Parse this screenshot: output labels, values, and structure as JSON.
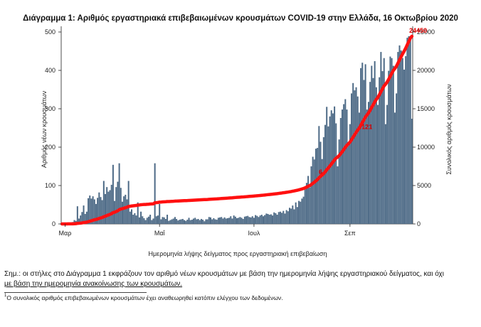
{
  "chart_data": {
    "type": "bar",
    "title": "Διάγραμμα 1: Αριθμός εργαστηριακά επιβεβαιωμένων κρουσμάτων COVID-19 στην Ελλάδα, 16 Οκτωβρίου 2020",
    "xlabel": "Ημερομηνία λήψης δείγματος προς εργαστηριακή επιβεβαίωση",
    "ylabel": "Αριθμός νέων κρουσμάτων",
    "y2label": "Συνολικός αριθμός κρουσμάτων",
    "ylim": [
      0,
      500
    ],
    "y2lim": [
      0,
      25000
    ],
    "yticks": [
      0,
      100,
      200,
      300,
      400,
      500
    ],
    "y2ticks": [
      0,
      5000,
      10000,
      15000,
      20000,
      25000
    ],
    "xticks": [
      {
        "label": "Μαρ",
        "day": 2
      },
      {
        "label": "Μαΐ",
        "day": 63
      },
      {
        "label": "Ιουλ",
        "day": 124
      },
      {
        "label": "Σεπ",
        "day": 186
      }
    ],
    "start_date": "2020-02-28",
    "end_date": "2020-10-15",
    "series": [
      {
        "name": "Νέα κρούσματα",
        "kind": "bar",
        "color": "#4d6a86",
        "values": [
          1,
          1,
          1,
          3,
          2,
          2,
          4,
          5,
          10,
          8,
          46,
          14,
          22,
          31,
          48,
          26,
          32,
          67,
          74,
          66,
          72,
          64,
          52,
          68,
          82,
          70,
          62,
          112,
          78,
          96,
          84,
          88,
          102,
          154,
          60,
          96,
          110,
          158,
          94,
          58,
          72,
          76,
          64,
          112,
          32,
          38,
          24,
          28,
          22,
          56,
          17,
          32,
          20,
          15,
          10,
          16,
          19,
          24,
          10,
          14,
          158,
          20,
          22,
          52,
          12,
          18,
          17,
          13,
          24,
          8,
          10,
          12,
          14,
          18,
          13,
          9,
          11,
          12,
          13,
          10,
          8,
          11,
          16,
          10,
          11,
          14,
          16,
          12,
          13,
          10,
          13,
          11,
          7,
          12,
          12,
          18,
          17,
          12,
          15,
          12,
          11,
          16,
          17,
          18,
          14,
          17,
          14,
          15,
          16,
          20,
          14,
          22,
          19,
          15,
          16,
          18,
          16,
          13,
          19,
          20,
          21,
          18,
          17,
          20,
          16,
          23,
          21,
          18,
          22,
          24,
          20,
          23,
          27,
          26,
          24,
          25,
          22,
          30,
          28,
          24,
          31,
          32,
          29,
          34,
          27,
          36,
          33,
          42,
          40,
          48,
          38,
          56,
          44,
          60,
          58,
          66,
          71,
          96,
          107,
          125,
          95,
          150,
          175,
          168,
          196,
          198,
          255,
          214,
          169,
          226,
          258,
          305,
          254,
          280,
          296,
          288,
          306,
          262,
          150,
          220,
          276,
          298,
          312,
          325,
          298,
          208,
          260,
          340,
          367,
          348,
          356,
          332,
          290,
          406,
          420,
          375,
          416,
          298,
          318,
          370,
          412,
          380,
          424,
          356,
          310,
          382,
          448,
          398,
          432,
          260,
          310,
          399,
          436,
          432,
          412,
          290,
          340,
          448,
          465,
          452,
          432,
          402,
          437,
          485,
          489,
          482,
          274
        ]
      },
      {
        "name": "Συνολικός αριθμός κρουσμάτων",
        "kind": "line",
        "color": "#ff1010",
        "axis": "right"
      }
    ],
    "annotations": [
      {
        "label": "6",
        "day": 167,
        "value": 6000
      },
      {
        "label": "121",
        "day": 197,
        "value": 11900
      },
      {
        "label": "24450",
        "day": 230,
        "value": 24450
      }
    ]
  },
  "note": {
    "prefix": "Σημ.: οι στήλες στο Διάγραμμα 1 εκφράζουν τον αριθμό νέων κρουσμάτων με βάση την ημερομηνία λήψης εργαστηριακού δείγματος, και όχι",
    "underlined": "με βάση την ημερομηνία ανακοίνωσης των κρουσμάτων."
  },
  "footnote": {
    "marker": "1",
    "text": "Ο συνολικός αριθμός επιβεβαιωμένων κρουσμάτων έχει αναθεωρηθεί κατόπιν ελέγχου των δεδομένων."
  }
}
